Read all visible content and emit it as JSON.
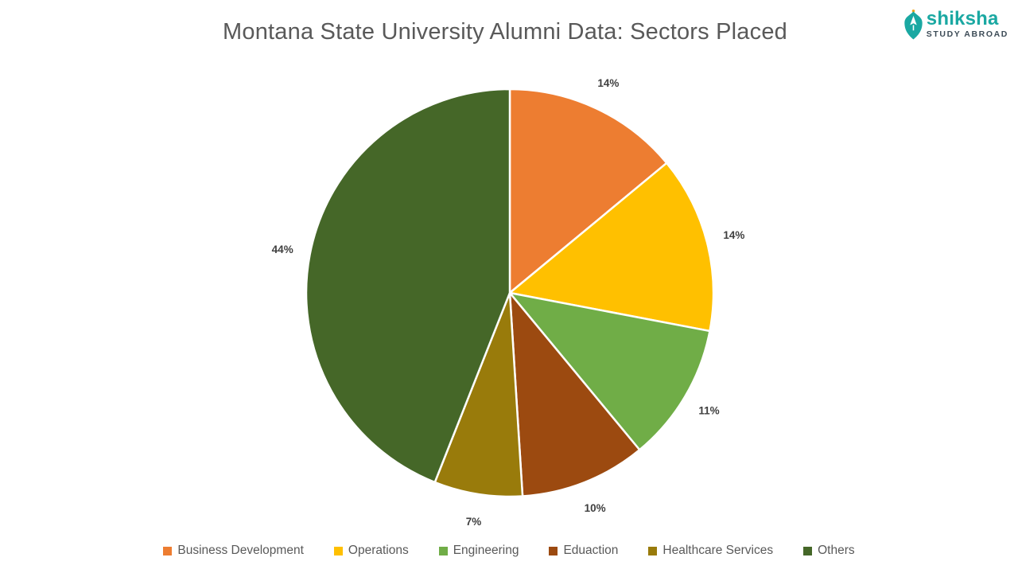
{
  "header": {
    "title": "Montana State University Alumni Data: Sectors Placed",
    "title_color": "#595959"
  },
  "logo": {
    "brand_name": "shiksha",
    "tagline": "STUDY ABROAD",
    "brand_color": "#1AA8A2",
    "tagline_color": "#3D4C57",
    "icon": "pen-nib-plane-icon"
  },
  "chart_data": {
    "type": "pie",
    "title": "Montana State University Alumni Data: Sectors Placed",
    "start_angle_deg": 0,
    "direction": "clockwise",
    "data_labels": "percent-outside",
    "legend_position": "bottom",
    "categories": [
      "Business Development",
      "Operations",
      "Engineering",
      "Eduaction",
      "Healthcare Services",
      "Others"
    ],
    "values": [
      14,
      14,
      11,
      10,
      7,
      44
    ],
    "labels": [
      "14%",
      "14%",
      "11%",
      "10%",
      "7%",
      "44%"
    ],
    "colors": [
      "#ED7D31",
      "#FFC000",
      "#70AD47",
      "#9C4A10",
      "#997B0B",
      "#456728"
    ],
    "slice_border_color": "#FFFFFF",
    "label_color": "#3F3F3F",
    "legend_text_color": "#595959"
  }
}
